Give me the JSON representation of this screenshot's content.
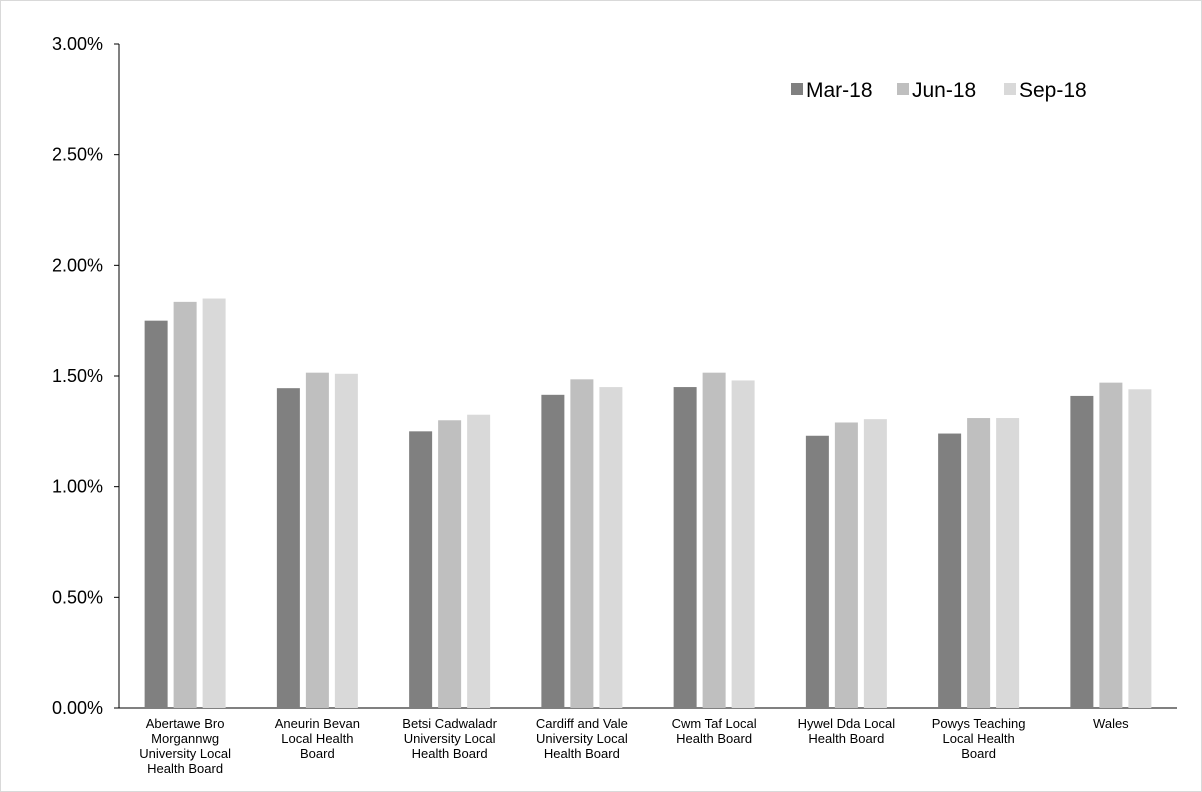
{
  "chart_data": {
    "type": "bar",
    "categories": [
      [
        "Abertawe Bro",
        "Morgannwg",
        "University Local",
        "Health Board"
      ],
      [
        "Aneurin Bevan",
        "Local Health",
        "Board"
      ],
      [
        "Betsi Cadwaladr",
        "University Local",
        "Health Board"
      ],
      [
        "Cardiff and Vale",
        "University Local",
        "Health Board"
      ],
      [
        "Cwm Taf Local",
        "Health Board"
      ],
      [
        "Hywel Dda Local",
        "Health Board"
      ],
      [
        "Powys Teaching",
        "Local Health",
        "Board"
      ],
      [
        "Wales"
      ]
    ],
    "series": [
      {
        "name": "Mar-18",
        "color": "#808080",
        "values": [
          1.75,
          1.445,
          1.25,
          1.415,
          1.45,
          1.23,
          1.24,
          1.41
        ]
      },
      {
        "name": "Jun-18",
        "color": "#bfbfbf",
        "values": [
          1.835,
          1.515,
          1.3,
          1.485,
          1.515,
          1.29,
          1.31,
          1.47
        ]
      },
      {
        "name": "Sep-18",
        "color": "#d9d9d9",
        "values": [
          1.85,
          1.51,
          1.325,
          1.45,
          1.48,
          1.305,
          1.31,
          1.44
        ]
      }
    ],
    "ylim": [
      0,
      3
    ],
    "yticks": [
      {
        "value": 0,
        "label": "0.00%"
      },
      {
        "value": 0.5,
        "label": "0.50%"
      },
      {
        "value": 1,
        "label": "1.00%"
      },
      {
        "value": 1.5,
        "label": "1.50%"
      },
      {
        "value": 2,
        "label": "2.00%"
      },
      {
        "value": 2.5,
        "label": "2.50%"
      },
      {
        "value": 3,
        "label": "3.00%"
      }
    ],
    "grid": false,
    "legend": "top-right"
  }
}
